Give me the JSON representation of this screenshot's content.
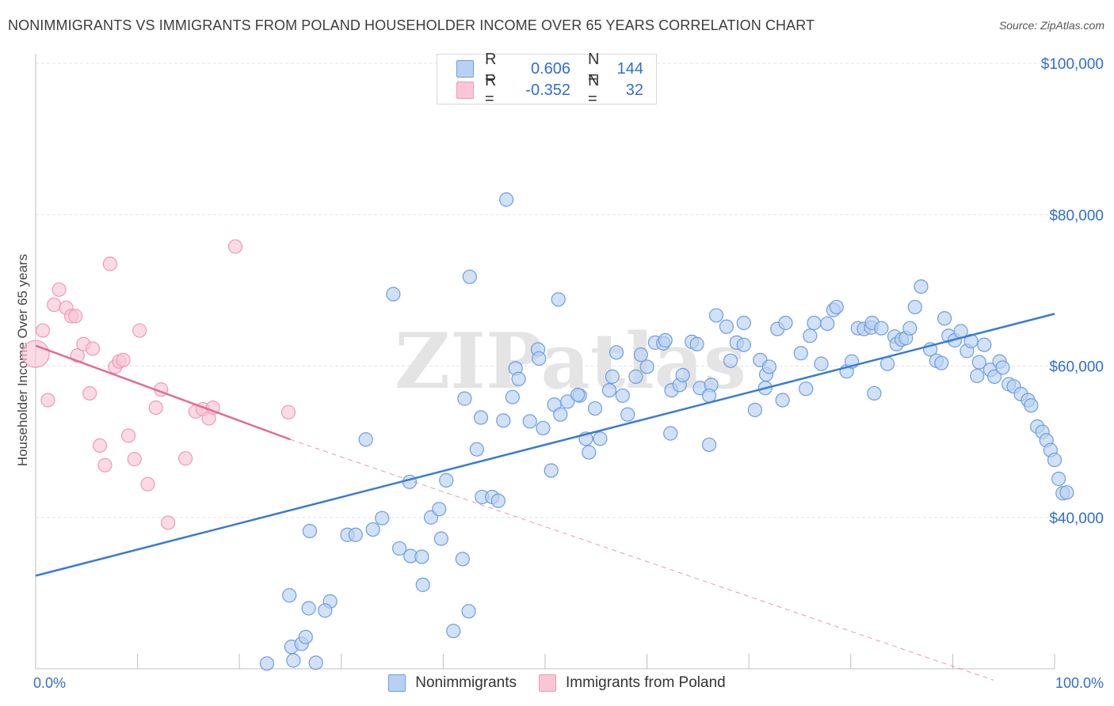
{
  "title": "NONIMMIGRANTS VS IMMIGRANTS FROM POLAND HOUSEHOLDER INCOME OVER 65 YEARS CORRELATION CHART",
  "source": "Source: ZipAtlas.com",
  "watermark": "ZIPatlas",
  "legend": {
    "rows": [
      {
        "r_label": "R =",
        "r_value": "0.606",
        "n_label": "N =",
        "n_value": "144"
      },
      {
        "r_label": "R =",
        "r_value": "-0.352",
        "n_label": "N =",
        "n_value": "32"
      }
    ]
  },
  "bottom_legend": {
    "series1": "Nonimmigrants",
    "series2": "Immigrants from Poland"
  },
  "colors": {
    "blue": "#3a7bd5",
    "blue_fill": "#b8d1f3",
    "blue_stroke": "#6d9de0",
    "pink": "#e26b93",
    "pink_fill": "#f8c6d5",
    "pink_stroke": "#ef9ab6",
    "axis_label": "#2f6fd0",
    "grid": "#e3e3e3"
  },
  "chart_data": {
    "type": "scatter",
    "xlabel": "",
    "ylabel": "Householder Income Over 65 years",
    "xlim": [
      0,
      100
    ],
    "ylim": [
      20000,
      100000
    ],
    "x_tick_labels": [
      "0.0%",
      "100.0%"
    ],
    "y_tick_labels": [
      {
        "value": 40000,
        "label": "$40,000"
      },
      {
        "value": 60000,
        "label": "$60,000"
      },
      {
        "value": 80000,
        "label": "$80,000"
      },
      {
        "value": 100000,
        "label": "$100,000"
      }
    ],
    "series": [
      {
        "name": "Nonimmigrants",
        "color": "#3a7bd5",
        "trend": {
          "x": [
            0,
            100
          ],
          "y": [
            32300,
            66900
          ]
        },
        "points": [
          [
            46.2,
            82000
          ],
          [
            42.6,
            71800
          ],
          [
            35.1,
            69500
          ],
          [
            51.3,
            68800
          ],
          [
            32.4,
            50300
          ],
          [
            26.9,
            38200
          ],
          [
            24.9,
            29700
          ],
          [
            26.8,
            28000
          ],
          [
            28.9,
            28900
          ],
          [
            28.4,
            27700
          ],
          [
            30.6,
            37700
          ],
          [
            31.4,
            37700
          ],
          [
            33.1,
            38400
          ],
          [
            34.0,
            39900
          ],
          [
            35.7,
            35900
          ],
          [
            36.8,
            34900
          ],
          [
            37.9,
            34800
          ],
          [
            38.0,
            31100
          ],
          [
            36.7,
            44700
          ],
          [
            38.8,
            40000
          ],
          [
            39.6,
            41100
          ],
          [
            40.3,
            44900
          ],
          [
            39.8,
            37200
          ],
          [
            41.0,
            25000
          ],
          [
            41.9,
            34500
          ],
          [
            42.1,
            55700
          ],
          [
            42.5,
            27600
          ],
          [
            43.3,
            49000
          ],
          [
            43.8,
            42700
          ],
          [
            44.8,
            42700
          ],
          [
            43.7,
            53200
          ],
          [
            45.4,
            42200
          ],
          [
            45.9,
            52800
          ],
          [
            46.8,
            55900
          ],
          [
            47.1,
            59700
          ],
          [
            47.4,
            58300
          ],
          [
            48.5,
            52700
          ],
          [
            49.3,
            62200
          ],
          [
            49.4,
            61000
          ],
          [
            49.8,
            51800
          ],
          [
            50.6,
            46200
          ],
          [
            50.9,
            54900
          ],
          [
            51.5,
            53600
          ],
          [
            52.2,
            55300
          ],
          [
            53.4,
            56100
          ],
          [
            53.2,
            56200
          ],
          [
            54.0,
            50400
          ],
          [
            54.3,
            48600
          ],
          [
            54.9,
            54400
          ],
          [
            55.4,
            50400
          ],
          [
            56.3,
            56800
          ],
          [
            56.6,
            58600
          ],
          [
            57.0,
            61800
          ],
          [
            57.6,
            56100
          ],
          [
            58.1,
            53600
          ],
          [
            58.9,
            58600
          ],
          [
            59.4,
            61500
          ],
          [
            60.0,
            59900
          ],
          [
            60.8,
            63100
          ],
          [
            61.6,
            63000
          ],
          [
            61.8,
            63400
          ],
          [
            62.3,
            51100
          ],
          [
            62.4,
            56800
          ],
          [
            63.2,
            57500
          ],
          [
            63.5,
            58800
          ],
          [
            64.4,
            63200
          ],
          [
            64.9,
            62900
          ],
          [
            65.2,
            57100
          ],
          [
            66.1,
            49600
          ],
          [
            66.3,
            57500
          ],
          [
            66.8,
            66700
          ],
          [
            66.1,
            56100
          ],
          [
            67.8,
            65200
          ],
          [
            68.2,
            60700
          ],
          [
            68.8,
            63100
          ],
          [
            69.5,
            65700
          ],
          [
            69.5,
            62800
          ],
          [
            70.6,
            54200
          ],
          [
            71.1,
            60800
          ],
          [
            71.6,
            57100
          ],
          [
            71.7,
            58900
          ],
          [
            72.0,
            59900
          ],
          [
            72.8,
            64900
          ],
          [
            73.3,
            55500
          ],
          [
            73.6,
            65700
          ],
          [
            75.1,
            61700
          ],
          [
            75.6,
            57000
          ],
          [
            76.0,
            64000
          ],
          [
            76.4,
            65700
          ],
          [
            77.1,
            60300
          ],
          [
            77.7,
            65600
          ],
          [
            78.3,
            67400
          ],
          [
            78.6,
            67800
          ],
          [
            79.6,
            59300
          ],
          [
            80.1,
            60600
          ],
          [
            80.7,
            65000
          ],
          [
            81.3,
            64900
          ],
          [
            82.0,
            65100
          ],
          [
            82.1,
            65700
          ],
          [
            82.3,
            56400
          ],
          [
            83.0,
            65000
          ],
          [
            83.6,
            60300
          ],
          [
            84.3,
            63900
          ],
          [
            84.5,
            62900
          ],
          [
            85.0,
            63500
          ],
          [
            85.4,
            63700
          ],
          [
            85.8,
            65000
          ],
          [
            86.3,
            67800
          ],
          [
            86.9,
            70500
          ],
          [
            87.8,
            62200
          ],
          [
            88.4,
            60700
          ],
          [
            88.9,
            60400
          ],
          [
            89.2,
            66300
          ],
          [
            89.6,
            64000
          ],
          [
            90.2,
            63400
          ],
          [
            90.8,
            64600
          ],
          [
            91.4,
            62000
          ],
          [
            91.8,
            63300
          ],
          [
            92.4,
            58700
          ],
          [
            92.6,
            60500
          ],
          [
            93.1,
            62800
          ],
          [
            93.7,
            59500
          ],
          [
            94.1,
            58600
          ],
          [
            94.6,
            60600
          ],
          [
            94.9,
            59800
          ],
          [
            95.5,
            57600
          ],
          [
            96.0,
            57300
          ],
          [
            96.7,
            56300
          ],
          [
            97.4,
            55500
          ],
          [
            97.7,
            54800
          ],
          [
            98.3,
            52000
          ],
          [
            98.8,
            51300
          ],
          [
            99.2,
            50200
          ],
          [
            99.6,
            48900
          ],
          [
            100.0,
            47600
          ],
          [
            100.4,
            45100
          ],
          [
            100.8,
            43200
          ],
          [
            101.2,
            43300
          ],
          [
            25.3,
            21100
          ],
          [
            27.5,
            20800
          ],
          [
            22.7,
            20700
          ],
          [
            25.1,
            22900
          ],
          [
            26.1,
            23300
          ],
          [
            26.5,
            24200
          ]
        ]
      },
      {
        "name": "Immigrants from Poland",
        "color": "#e26b93",
        "trend": {
          "x": [
            0,
            25.0
          ],
          "y": [
            62700,
            50300
          ]
        },
        "trend_ext": {
          "x": [
            25.0,
            94.0
          ],
          "y": [
            50300,
            18500
          ]
        },
        "points": [
          [
            0.0,
            61600
          ],
          [
            0.7,
            64700
          ],
          [
            1.2,
            55500
          ],
          [
            1.8,
            68100
          ],
          [
            2.3,
            70100
          ],
          [
            3.0,
            67700
          ],
          [
            3.5,
            66600
          ],
          [
            3.9,
            66600
          ],
          [
            4.1,
            61400
          ],
          [
            4.7,
            62900
          ],
          [
            5.3,
            56400
          ],
          [
            5.6,
            62300
          ],
          [
            6.3,
            49500
          ],
          [
            6.8,
            46900
          ],
          [
            7.3,
            73500
          ],
          [
            7.8,
            59900
          ],
          [
            8.2,
            60600
          ],
          [
            8.6,
            60800
          ],
          [
            9.1,
            50800
          ],
          [
            9.7,
            47700
          ],
          [
            10.2,
            64700
          ],
          [
            11.0,
            44400
          ],
          [
            11.8,
            54500
          ],
          [
            12.3,
            56900
          ],
          [
            13.0,
            39300
          ],
          [
            14.7,
            47800
          ],
          [
            15.7,
            54000
          ],
          [
            16.4,
            54300
          ],
          [
            17.0,
            53100
          ],
          [
            17.4,
            54500
          ],
          [
            19.6,
            75800
          ],
          [
            24.8,
            53900
          ]
        ]
      }
    ]
  }
}
